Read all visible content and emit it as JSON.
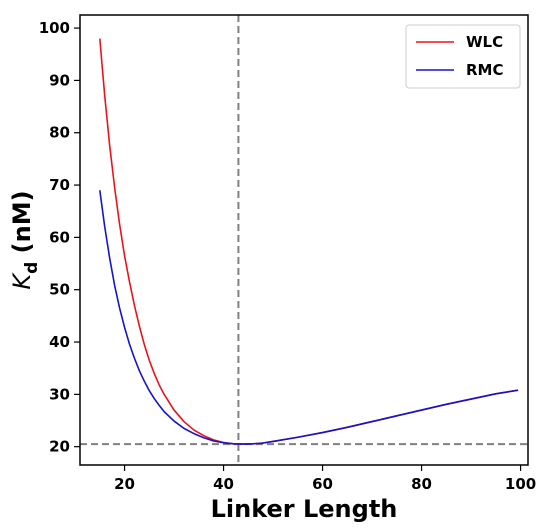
{
  "chart_data": {
    "type": "line",
    "xlabel": "Linker Length",
    "ylabel_main": "K",
    "ylabel_sub": "d",
    "ylabel_unit": " (nM)",
    "xlim": [
      11,
      101.5
    ],
    "ylim": [
      16.5,
      102.5
    ],
    "xticks": [
      20,
      40,
      60,
      80,
      100
    ],
    "yticks": [
      20,
      30,
      40,
      50,
      60,
      70,
      80,
      90,
      100
    ],
    "grid": false,
    "legend_position": "top-right",
    "reference_lines": {
      "vertical_x": 43,
      "horizontal_y": 20.5,
      "color": "#808080",
      "style": "dashed"
    },
    "series": [
      {
        "name": "WLC",
        "color": "#e8141c",
        "x": [
          15,
          16,
          17,
          18,
          19,
          20,
          21,
          22,
          23,
          24,
          25,
          26,
          27,
          28,
          30,
          32,
          34,
          36,
          38,
          40,
          42,
          44,
          46,
          48,
          50,
          55,
          60,
          65,
          70,
          75,
          80,
          85,
          90,
          95,
          99.5
        ],
        "y": [
          98,
          87,
          77.5,
          69.5,
          62.5,
          56.5,
          51.5,
          47,
          43,
          39.5,
          36.5,
          34,
          31.8,
          30,
          27,
          24.8,
          23.2,
          22.1,
          21.3,
          20.8,
          20.55,
          20.5,
          20.55,
          20.7,
          21,
          21.8,
          22.7,
          23.7,
          24.8,
          25.9,
          27,
          28.1,
          29.1,
          30.1,
          30.8
        ]
      },
      {
        "name": "RMC",
        "color": "#1515c8",
        "x": [
          15,
          16,
          17,
          18,
          19,
          20,
          21,
          22,
          23,
          24,
          25,
          26,
          27,
          28,
          30,
          32,
          34,
          36,
          38,
          40,
          42,
          44,
          46,
          48,
          50,
          55,
          60,
          65,
          70,
          75,
          80,
          85,
          90,
          95,
          99.5
        ],
        "y": [
          69,
          62,
          56,
          50.8,
          46.5,
          42.8,
          39.6,
          36.9,
          34.5,
          32.5,
          30.7,
          29.2,
          27.9,
          26.7,
          24.9,
          23.5,
          22.5,
          21.7,
          21.1,
          20.75,
          20.55,
          20.5,
          20.55,
          20.7,
          21,
          21.8,
          22.7,
          23.7,
          24.8,
          25.9,
          27,
          28.1,
          29.1,
          30.1,
          30.8
        ]
      }
    ]
  }
}
